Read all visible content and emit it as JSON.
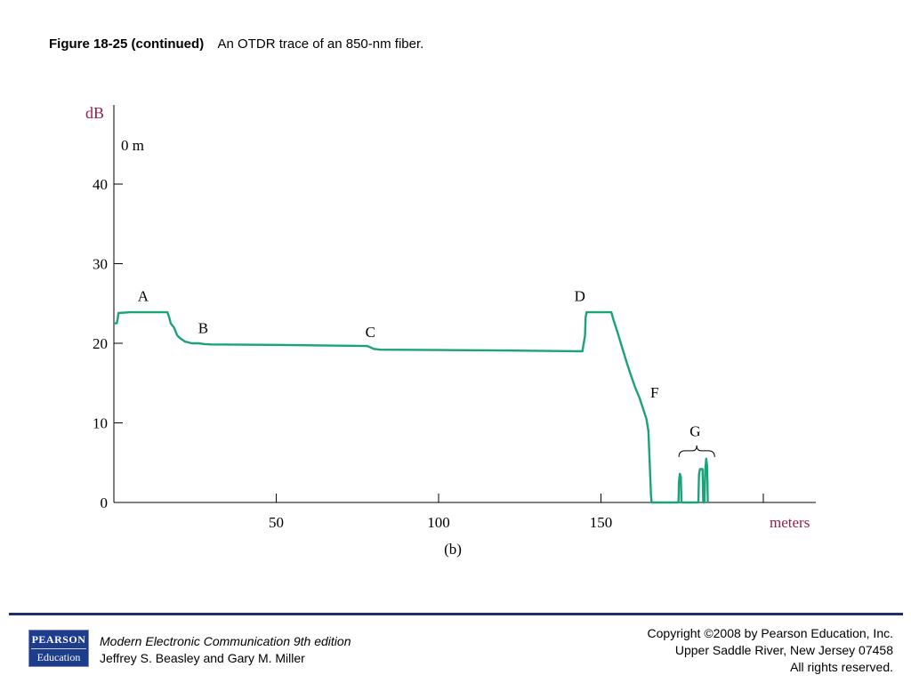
{
  "caption": {
    "label": "Figure 18-25 (continued)",
    "text": "An OTDR trace of an 850-nm fiber."
  },
  "chart_data": {
    "type": "line",
    "ylabel": "dB",
    "xlabel": "meters",
    "sublabel": "(b)",
    "origin_label": "0 m",
    "xlim": [
      0,
      215
    ],
    "ylim": [
      0,
      50
    ],
    "x_ticks": [
      50,
      100,
      150,
      200
    ],
    "x_tick_labels": [
      "50",
      "100",
      "150"
    ],
    "y_ticks": [
      0,
      10,
      20,
      30,
      40
    ],
    "y_tick_labels": [
      "0",
      "10",
      "20",
      "30",
      "40"
    ],
    "grid": false,
    "line_color": "#1aa37a",
    "axis_label_color": "#9b1b4a",
    "series": [
      {
        "points": [
          [
            0,
            22.5
          ],
          [
            0.9,
            22.5
          ],
          [
            1.2,
            23.2
          ],
          [
            1.4,
            23.8
          ],
          [
            5,
            23.9
          ],
          [
            10,
            23.9
          ],
          [
            16.5,
            23.9
          ],
          [
            17,
            23.3
          ],
          [
            17.5,
            22.5
          ],
          [
            18.5,
            22.0
          ],
          [
            19.5,
            21.0
          ],
          [
            20.5,
            20.6
          ],
          [
            22,
            20.2
          ],
          [
            24,
            20.0
          ],
          [
            26,
            20.0
          ],
          [
            28,
            19.9
          ],
          [
            30,
            19.85
          ],
          [
            50,
            19.8
          ],
          [
            70,
            19.7
          ],
          [
            78,
            19.65
          ],
          [
            79,
            19.5
          ],
          [
            80,
            19.3
          ],
          [
            82,
            19.2
          ],
          [
            100,
            19.15
          ],
          [
            120,
            19.1
          ],
          [
            144.3,
            19.0
          ],
          [
            144.6,
            19.8
          ],
          [
            144.9,
            20.5
          ],
          [
            145.1,
            21.0
          ],
          [
            145.3,
            23.3
          ],
          [
            145.6,
            23.9
          ],
          [
            149,
            23.9
          ],
          [
            153.2,
            23.9
          ],
          [
            153.8,
            23.0
          ],
          [
            155,
            21.5
          ],
          [
            156.5,
            19.5
          ],
          [
            158,
            17.5
          ],
          [
            159.2,
            16.0
          ],
          [
            160.5,
            14.5
          ],
          [
            162,
            13.0
          ],
          [
            163.2,
            11.5
          ],
          [
            164,
            10.5
          ],
          [
            164.6,
            9.0
          ],
          [
            165,
            5.0
          ],
          [
            165.4,
            1.0
          ],
          [
            165.6,
            0
          ],
          [
            173.9,
            0
          ],
          [
            174,
            2.5
          ],
          [
            174.3,
            3.6
          ],
          [
            174.6,
            3.2
          ],
          [
            174.8,
            0
          ],
          [
            180,
            0
          ],
          [
            180.2,
            3.5
          ],
          [
            180.5,
            4.2
          ],
          [
            181.3,
            4.2
          ],
          [
            181.5,
            0
          ],
          [
            181.9,
            0
          ],
          [
            182.1,
            4.0
          ],
          [
            182.4,
            5.5
          ],
          [
            182.7,
            4.5
          ],
          [
            182.9,
            0
          ]
        ]
      }
    ],
    "annotations": [
      {
        "text": "A",
        "x": 9,
        "y": 25.3
      },
      {
        "text": "B",
        "x": 27.5,
        "y": 21.3
      },
      {
        "text": "C",
        "x": 79,
        "y": 20.8
      },
      {
        "text": "D",
        "x": 143.5,
        "y": 25.3
      },
      {
        "text": "F",
        "x": 166.5,
        "y": 13.2
      },
      {
        "text": "G",
        "x": 179,
        "y": 8.3
      }
    ],
    "bracket": {
      "x_start": 174,
      "x_end": 185,
      "y": 6.5
    }
  },
  "footer": {
    "book_title": "Modern Electronic Communication 9th edition",
    "authors": "Jeffrey S. Beasley and Gary M. Miller",
    "copyright_line1": "Copyright ©2008 by Pearson Education, Inc.",
    "copyright_line2": "Upper Saddle River, New Jersey 07458",
    "copyright_line3": "All rights reserved.",
    "logo_line1": "PEARSON",
    "logo_line2": "Education"
  }
}
